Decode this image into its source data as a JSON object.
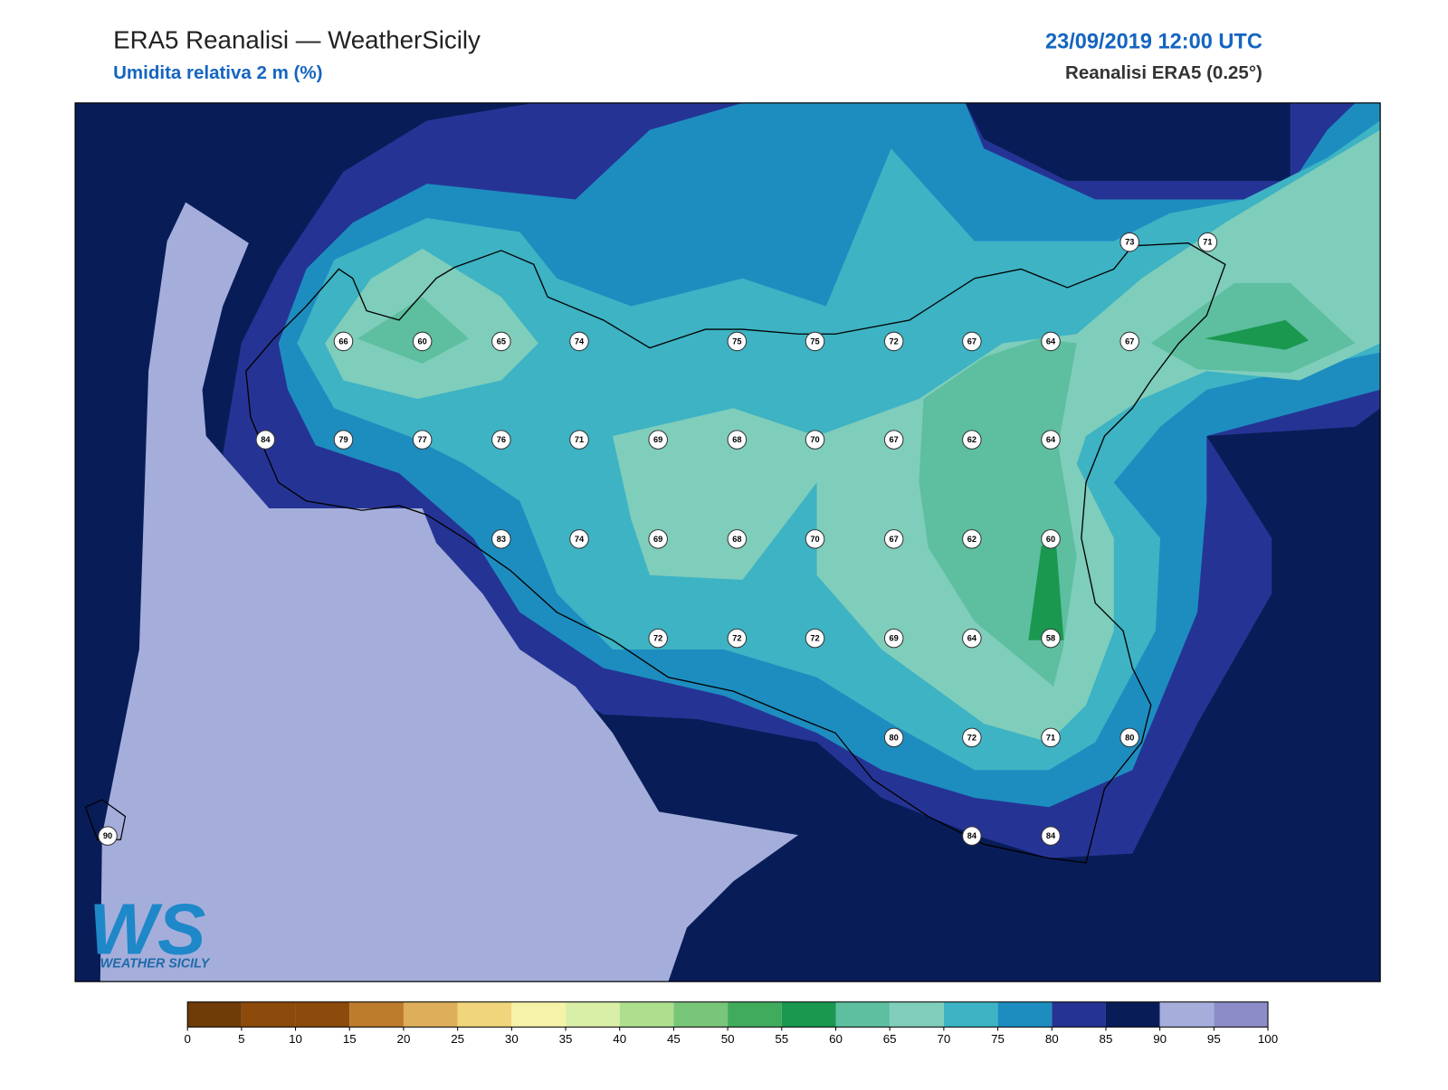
{
  "header": {
    "title": "ERA5 Reanalisi — WeatherSicily",
    "subtitle": "Umidita relativa 2 m (%)",
    "datetime": "23/09/2019 12:00 UTC",
    "source": "Reanalisi ERA5 (0.25°)"
  },
  "map": {
    "stations": [
      66,
      60,
      65,
      74,
      75,
      75,
      72,
      67,
      64,
      67,
      73,
      71,
      84,
      79,
      77,
      76,
      71,
      69,
      68,
      70,
      67,
      62,
      64,
      83,
      74,
      69,
      68,
      70,
      67,
      62,
      60,
      72,
      72,
      72,
      69,
      64,
      58,
      80,
      72,
      71,
      80,
      90,
      84,
      84
    ]
  },
  "logo": {
    "mark": "WS",
    "text": "WEATHER SICILY"
  },
  "colorbar": {
    "ticks": [
      0,
      5,
      10,
      15,
      20,
      25,
      30,
      35,
      40,
      45,
      50,
      55,
      60,
      65,
      70,
      75,
      80,
      85,
      90,
      95,
      100
    ],
    "colors": [
      "#6f3b07",
      "#8c4a0b",
      "#8c4a0b",
      "#bd7c2c",
      "#deae5b",
      "#f0d57c",
      "#f5f3a8",
      "#d9efa8",
      "#addf8f",
      "#78c679",
      "#41ab5d",
      "#1a9850",
      "#5dbf9f",
      "#7fcdbb",
      "#3db3c4",
      "#1d8dc0",
      "#253494",
      "#081d58",
      "#a5aedb",
      "#8c8cc8"
    ]
  }
}
